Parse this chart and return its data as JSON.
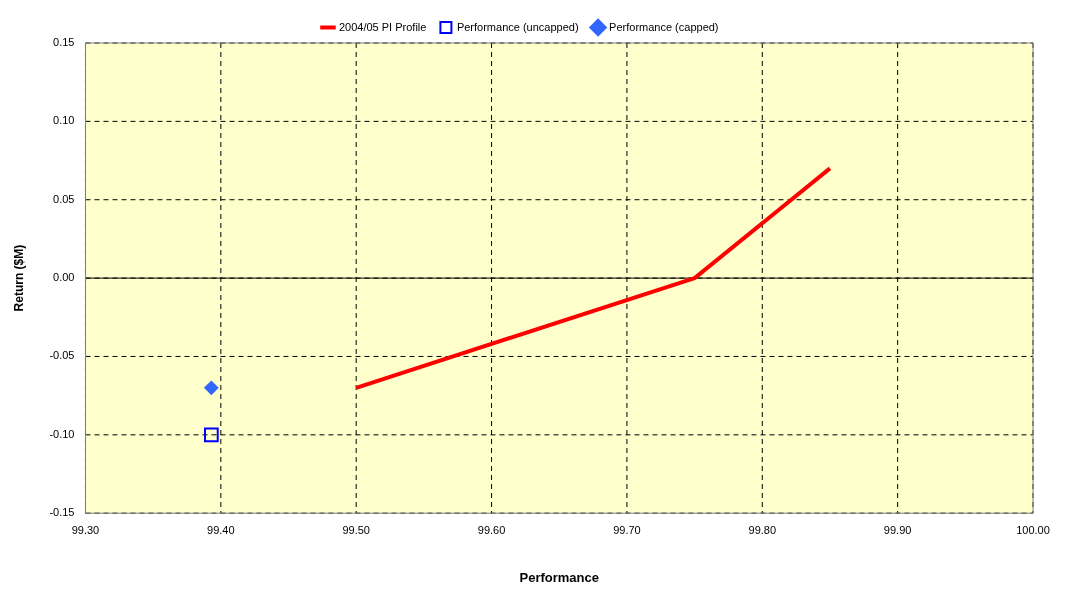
{
  "chart_data": {
    "type": "line",
    "xlabel": "Performance",
    "ylabel": "Return ($M)",
    "series": [
      {
        "name": "2004/05 PI Profile",
        "type": "line",
        "color": "#ff0000",
        "marker": "none",
        "x": [
          99.5,
          99.75,
          99.85
        ],
        "values": [
          -0.07,
          0,
          0.07
        ]
      },
      {
        "name": "Performance (uncapped)",
        "type": "scatter",
        "color": "#0000ff",
        "marker": "square",
        "x": [
          99.393
        ],
        "values": [
          -0.1
        ]
      },
      {
        "name": "Performance (capped)",
        "type": "scatter",
        "color": "#3366ff",
        "marker": "diamond",
        "x": [
          99.393
        ],
        "values": [
          -0.07
        ]
      }
    ],
    "xlim": [
      99.3,
      100
    ],
    "xticks": [
      {
        "value": 99.3,
        "label": "99.30"
      },
      {
        "value": 99.4,
        "label": "99.40"
      },
      {
        "value": 99.5,
        "label": "99.50"
      },
      {
        "value": 99.6,
        "label": "99.60"
      },
      {
        "value": 99.7,
        "label": "99.70"
      },
      {
        "value": 99.8,
        "label": "99.80"
      },
      {
        "value": 99.9,
        "label": "99.90"
      },
      {
        "value": 100,
        "label": "100.00"
      }
    ],
    "ylim": [
      -0.15,
      0.15
    ],
    "yticks": [
      {
        "value": -0.15,
        "label": "-0.15"
      },
      {
        "value": -0.1,
        "label": "-0.10"
      },
      {
        "value": -0.05,
        "label": "-0.05"
      },
      {
        "value": 0,
        "label": "0.00"
      },
      {
        "value": 0.05,
        "label": "0.05"
      },
      {
        "value": 0.1,
        "label": "0.10"
      },
      {
        "value": 0.15,
        "label": "0.15"
      }
    ],
    "grid": true,
    "legend": "top"
  }
}
